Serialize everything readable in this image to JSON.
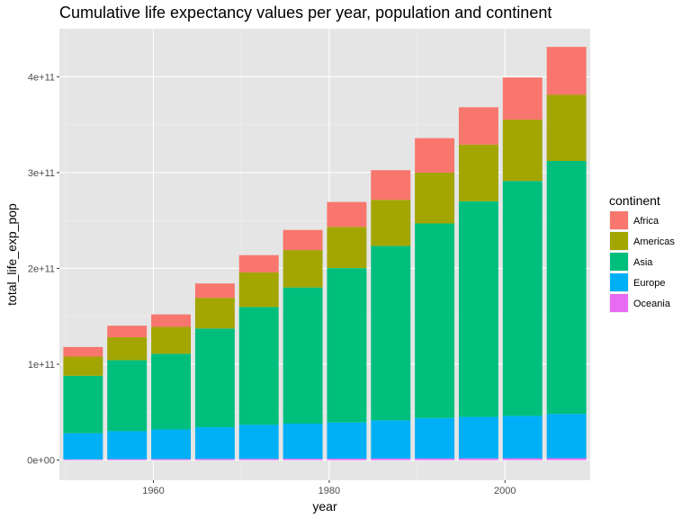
{
  "chart_data": {
    "type": "bar",
    "stacked": true,
    "title": "Cumulative life expectancy values per year, population and continent",
    "xlabel": "year",
    "ylabel": "total_life_exp_pop",
    "x": [
      1952,
      1957,
      1962,
      1967,
      1972,
      1977,
      1982,
      1987,
      1992,
      1997,
      2002,
      2007
    ],
    "xlim": [
      1949.3,
      2009.7
    ],
    "ylim": [
      -21000000000.0,
      450000000000.0
    ],
    "x_ticks": [
      1960,
      1980,
      2000
    ],
    "x_tick_labels": [
      "1960",
      "1980",
      "2000"
    ],
    "y_ticks": [
      0,
      100000000000.0,
      200000000000.0,
      300000000000.0,
      400000000000.0
    ],
    "y_tick_labels": [
      "0e+00",
      "1e+11",
      "2e+11",
      "3e+11",
      "4e+11"
    ],
    "grid": true,
    "legend_position": "right",
    "legend_title": "continent",
    "series": [
      {
        "name": "Oceania",
        "color": "#E76BF3",
        "values": [
          800000000.0,
          1000000000.0,
          1100000000.0,
          1200000000.0,
          1300000000.0,
          1400000000.0,
          1500000000.0,
          1600000000.0,
          1700000000.0,
          1800000000.0,
          1900000000.0,
          2000000000.0
        ]
      },
      {
        "name": "Europe",
        "color": "#00B0F6",
        "values": [
          27200000000.0,
          29200000000.0,
          30900000000.0,
          33100000000.0,
          35500000000.0,
          36700000000.0,
          37800000000.0,
          39900000000.0,
          42200000000.0,
          43300000000.0,
          44300000000.0,
          46100000000.0
        ]
      },
      {
        "name": "Asia",
        "color": "#00BF7D",
        "values": [
          60000000000.0,
          74000000000.0,
          79000000000.0,
          103000000000.0,
          123000000000.0,
          142000000000.0,
          161000000000.0,
          182000000000.0,
          203000000000.0,
          225000000000.0,
          245000000000.0,
          264000000000.0
        ]
      },
      {
        "name": "Americas",
        "color": "#A3A500",
        "values": [
          20000000000.0,
          24000000000.0,
          28000000000.0,
          32000000000.0,
          36000000000.0,
          39000000000.0,
          43000000000.0,
          48000000000.0,
          53000000000.0,
          59000000000.0,
          64000000000.0,
          69000000000.0
        ]
      },
      {
        "name": "Africa",
        "color": "#F8766D",
        "values": [
          10000000000.0,
          12000000000.0,
          13000000000.0,
          15000000000.0,
          18000000000.0,
          21000000000.0,
          26000000000.0,
          31000000000.0,
          36000000000.0,
          39000000000.0,
          44000000000.0,
          50000000000.0
        ]
      }
    ],
    "legend_order": [
      "Africa",
      "Americas",
      "Asia",
      "Europe",
      "Oceania"
    ]
  },
  "colors": {
    "panel_background": "#E5E5E5",
    "grid_major": "#FFFFFF",
    "grid_minor": "#F2F2F2",
    "tick_text": "#4D4D4D"
  }
}
